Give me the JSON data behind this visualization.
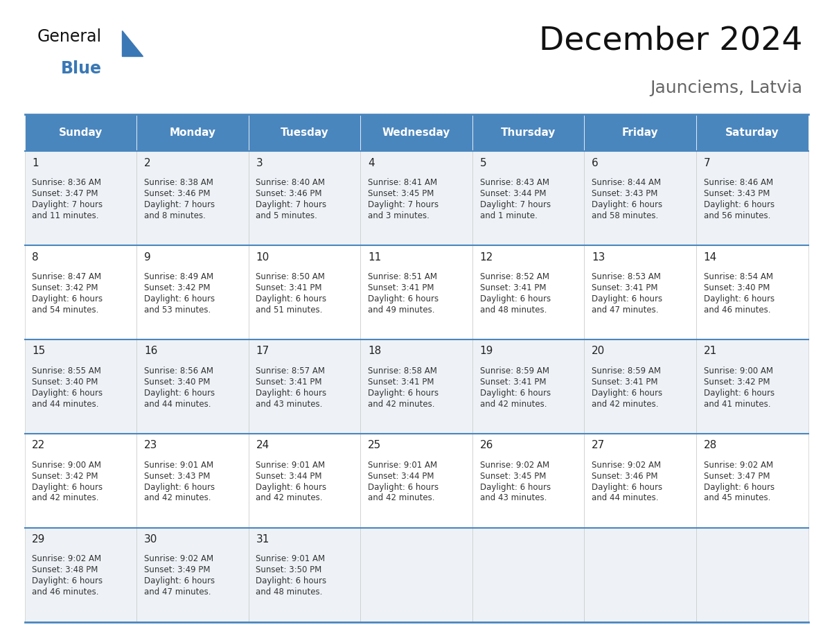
{
  "title": "December 2024",
  "subtitle": "Jaunciems, Latvia",
  "days_of_week": [
    "Sunday",
    "Monday",
    "Tuesday",
    "Wednesday",
    "Thursday",
    "Friday",
    "Saturday"
  ],
  "header_bg": "#4a86be",
  "header_text": "#ffffff",
  "cell_bg_odd": "#eef2f7",
  "cell_bg_even": "#ffffff",
  "day_number_color": "#222222",
  "cell_text_color": "#333333",
  "border_color": "#4a86be",
  "title_color": "#111111",
  "subtitle_color": "#666666",
  "logo_general_color": "#111111",
  "logo_blue_color": "#3a78b5",
  "weeks": [
    [
      {
        "day": 1,
        "sunrise": "8:36 AM",
        "sunset": "3:47 PM",
        "daylight_h": "7 hours",
        "daylight_m": "and 11 minutes."
      },
      {
        "day": 2,
        "sunrise": "8:38 AM",
        "sunset": "3:46 PM",
        "daylight_h": "7 hours",
        "daylight_m": "and 8 minutes."
      },
      {
        "day": 3,
        "sunrise": "8:40 AM",
        "sunset": "3:46 PM",
        "daylight_h": "7 hours",
        "daylight_m": "and 5 minutes."
      },
      {
        "day": 4,
        "sunrise": "8:41 AM",
        "sunset": "3:45 PM",
        "daylight_h": "7 hours",
        "daylight_m": "and 3 minutes."
      },
      {
        "day": 5,
        "sunrise": "8:43 AM",
        "sunset": "3:44 PM",
        "daylight_h": "7 hours",
        "daylight_m": "and 1 minute."
      },
      {
        "day": 6,
        "sunrise": "8:44 AM",
        "sunset": "3:43 PM",
        "daylight_h": "6 hours",
        "daylight_m": "and 58 minutes."
      },
      {
        "day": 7,
        "sunrise": "8:46 AM",
        "sunset": "3:43 PM",
        "daylight_h": "6 hours",
        "daylight_m": "and 56 minutes."
      }
    ],
    [
      {
        "day": 8,
        "sunrise": "8:47 AM",
        "sunset": "3:42 PM",
        "daylight_h": "6 hours",
        "daylight_m": "and 54 minutes."
      },
      {
        "day": 9,
        "sunrise": "8:49 AM",
        "sunset": "3:42 PM",
        "daylight_h": "6 hours",
        "daylight_m": "and 53 minutes."
      },
      {
        "day": 10,
        "sunrise": "8:50 AM",
        "sunset": "3:41 PM",
        "daylight_h": "6 hours",
        "daylight_m": "and 51 minutes."
      },
      {
        "day": 11,
        "sunrise": "8:51 AM",
        "sunset": "3:41 PM",
        "daylight_h": "6 hours",
        "daylight_m": "and 49 minutes."
      },
      {
        "day": 12,
        "sunrise": "8:52 AM",
        "sunset": "3:41 PM",
        "daylight_h": "6 hours",
        "daylight_m": "and 48 minutes."
      },
      {
        "day": 13,
        "sunrise": "8:53 AM",
        "sunset": "3:41 PM",
        "daylight_h": "6 hours",
        "daylight_m": "and 47 minutes."
      },
      {
        "day": 14,
        "sunrise": "8:54 AM",
        "sunset": "3:40 PM",
        "daylight_h": "6 hours",
        "daylight_m": "and 46 minutes."
      }
    ],
    [
      {
        "day": 15,
        "sunrise": "8:55 AM",
        "sunset": "3:40 PM",
        "daylight_h": "6 hours",
        "daylight_m": "and 44 minutes."
      },
      {
        "day": 16,
        "sunrise": "8:56 AM",
        "sunset": "3:40 PM",
        "daylight_h": "6 hours",
        "daylight_m": "and 44 minutes."
      },
      {
        "day": 17,
        "sunrise": "8:57 AM",
        "sunset": "3:41 PM",
        "daylight_h": "6 hours",
        "daylight_m": "and 43 minutes."
      },
      {
        "day": 18,
        "sunrise": "8:58 AM",
        "sunset": "3:41 PM",
        "daylight_h": "6 hours",
        "daylight_m": "and 42 minutes."
      },
      {
        "day": 19,
        "sunrise": "8:59 AM",
        "sunset": "3:41 PM",
        "daylight_h": "6 hours",
        "daylight_m": "and 42 minutes."
      },
      {
        "day": 20,
        "sunrise": "8:59 AM",
        "sunset": "3:41 PM",
        "daylight_h": "6 hours",
        "daylight_m": "and 42 minutes."
      },
      {
        "day": 21,
        "sunrise": "9:00 AM",
        "sunset": "3:42 PM",
        "daylight_h": "6 hours",
        "daylight_m": "and 41 minutes."
      }
    ],
    [
      {
        "day": 22,
        "sunrise": "9:00 AM",
        "sunset": "3:42 PM",
        "daylight_h": "6 hours",
        "daylight_m": "and 42 minutes."
      },
      {
        "day": 23,
        "sunrise": "9:01 AM",
        "sunset": "3:43 PM",
        "daylight_h": "6 hours",
        "daylight_m": "and 42 minutes."
      },
      {
        "day": 24,
        "sunrise": "9:01 AM",
        "sunset": "3:44 PM",
        "daylight_h": "6 hours",
        "daylight_m": "and 42 minutes."
      },
      {
        "day": 25,
        "sunrise": "9:01 AM",
        "sunset": "3:44 PM",
        "daylight_h": "6 hours",
        "daylight_m": "and 42 minutes."
      },
      {
        "day": 26,
        "sunrise": "9:02 AM",
        "sunset": "3:45 PM",
        "daylight_h": "6 hours",
        "daylight_m": "and 43 minutes."
      },
      {
        "day": 27,
        "sunrise": "9:02 AM",
        "sunset": "3:46 PM",
        "daylight_h": "6 hours",
        "daylight_m": "and 44 minutes."
      },
      {
        "day": 28,
        "sunrise": "9:02 AM",
        "sunset": "3:47 PM",
        "daylight_h": "6 hours",
        "daylight_m": "and 45 minutes."
      }
    ],
    [
      {
        "day": 29,
        "sunrise": "9:02 AM",
        "sunset": "3:48 PM",
        "daylight_h": "6 hours",
        "daylight_m": "and 46 minutes."
      },
      {
        "day": 30,
        "sunrise": "9:02 AM",
        "sunset": "3:49 PM",
        "daylight_h": "6 hours",
        "daylight_m": "and 47 minutes."
      },
      {
        "day": 31,
        "sunrise": "9:01 AM",
        "sunset": "3:50 PM",
        "daylight_h": "6 hours",
        "daylight_m": "and 48 minutes."
      },
      null,
      null,
      null,
      null
    ]
  ],
  "fig_width": 11.88,
  "fig_height": 9.18,
  "dpi": 100
}
